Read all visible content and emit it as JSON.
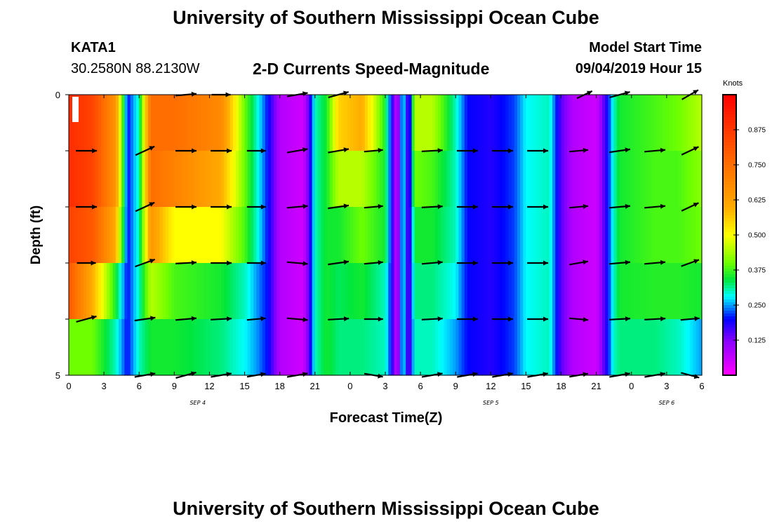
{
  "header": {
    "title": "University of Southern Mississippi Ocean Cube",
    "station_id": "KATA1",
    "coords": "30.2580N 88.2130W",
    "subtitle": "2-D Currents Speed-Magnitude",
    "model_label": "Model Start Time",
    "model_time": "09/04/2019 Hour 15"
  },
  "footer": {
    "title": "University of Southern Mississippi Ocean Cube"
  },
  "chart_data": {
    "type": "heatmap",
    "title": "2-D Currents Speed-Magnitude",
    "xlabel": "Forecast Time(Z)",
    "ylabel": "Depth (ft)",
    "x_range_hours": [
      0,
      54
    ],
    "x_tick_labels": [
      "0",
      "3",
      "6",
      "9",
      "12",
      "15",
      "18",
      "21",
      "0",
      "3",
      "6",
      "9",
      "12",
      "15",
      "18",
      "21",
      "0",
      "3",
      "6"
    ],
    "date_labels": [
      {
        "label": "SEP 4",
        "hour": 11
      },
      {
        "label": "SEP 5",
        "hour": 36
      },
      {
        "label": "SEP 6",
        "hour": 51
      }
    ],
    "y_range": [
      0,
      5
    ],
    "y_tick_labels": [
      "0",
      "5"
    ],
    "depth_levels": 5,
    "colorbar": {
      "title": "Knots",
      "tick_labels": [
        "0.875",
        "0.750",
        "0.625",
        "0.500",
        "0.375",
        "0.250",
        "0.125"
      ],
      "range": [
        0,
        1
      ]
    },
    "speed_keys": [
      {
        "t": 0,
        "rows": [
          0.9,
          0.9,
          0.85,
          0.8,
          0.4
        ]
      },
      {
        "t": 2,
        "rows": [
          0.85,
          0.85,
          0.8,
          0.6,
          0.4
        ]
      },
      {
        "t": 4,
        "rows": [
          0.65,
          0.65,
          0.6,
          0.35,
          0.3
        ]
      },
      {
        "t": 5,
        "rows": [
          0.2,
          0.2,
          0.2,
          0.2,
          0.2
        ]
      },
      {
        "t": 6,
        "rows": [
          0.3,
          0.3,
          0.3,
          0.3,
          0.3
        ]
      },
      {
        "t": 7,
        "rows": [
          0.75,
          0.75,
          0.65,
          0.45,
          0.35
        ]
      },
      {
        "t": 9,
        "rows": [
          0.75,
          0.7,
          0.5,
          0.38,
          0.35
        ]
      },
      {
        "t": 13,
        "rows": [
          0.68,
          0.6,
          0.5,
          0.35,
          0.32
        ]
      },
      {
        "t": 15,
        "rows": [
          0.4,
          0.4,
          0.38,
          0.3,
          0.28
        ]
      },
      {
        "t": 16,
        "rows": [
          0.3,
          0.3,
          0.3,
          0.25,
          0.25
        ]
      },
      {
        "t": 17,
        "rows": [
          0.2,
          0.2,
          0.2,
          0.2,
          0.2
        ]
      },
      {
        "t": 18,
        "rows": [
          0.08,
          0.08,
          0.08,
          0.08,
          0.08
        ]
      },
      {
        "t": 20,
        "rows": [
          0.05,
          0.05,
          0.05,
          0.05,
          0.05
        ]
      },
      {
        "t": 20.5,
        "rows": [
          0.15,
          0.15,
          0.15,
          0.15,
          0.15
        ]
      },
      {
        "t": 21,
        "rows": [
          0.3,
          0.3,
          0.3,
          0.3,
          0.3
        ]
      },
      {
        "t": 22,
        "rows": [
          0.35,
          0.35,
          0.35,
          0.35,
          0.35
        ]
      },
      {
        "t": 23,
        "rows": [
          0.55,
          0.45,
          0.35,
          0.33,
          0.32
        ]
      },
      {
        "t": 25,
        "rows": [
          0.6,
          0.45,
          0.4,
          0.35,
          0.32
        ]
      },
      {
        "t": 27,
        "rows": [
          0.35,
          0.35,
          0.35,
          0.3,
          0.3
        ]
      },
      {
        "t": 27.5,
        "rows": [
          0.2,
          0.2,
          0.2,
          0.2,
          0.2
        ]
      },
      {
        "t": 28,
        "rows": [
          0.05,
          0.05,
          0.05,
          0.05,
          0.05
        ]
      },
      {
        "t": 28.5,
        "rows": [
          0.3,
          0.3,
          0.3,
          0.3,
          0.3
        ]
      },
      {
        "t": 29,
        "rows": [
          0.12,
          0.12,
          0.12,
          0.12,
          0.12
        ]
      },
      {
        "t": 29.5,
        "rows": [
          0.45,
          0.4,
          0.35,
          0.32,
          0.3
        ]
      },
      {
        "t": 31,
        "rows": [
          0.45,
          0.38,
          0.35,
          0.32,
          0.3
        ]
      },
      {
        "t": 33,
        "rows": [
          0.3,
          0.3,
          0.3,
          0.28,
          0.25
        ]
      },
      {
        "t": 34,
        "rows": [
          0.2,
          0.2,
          0.2,
          0.2,
          0.2
        ]
      },
      {
        "t": 36,
        "rows": [
          0.18,
          0.18,
          0.18,
          0.18,
          0.18
        ]
      },
      {
        "t": 38,
        "rows": [
          0.22,
          0.22,
          0.22,
          0.22,
          0.22
        ]
      },
      {
        "t": 39,
        "rows": [
          0.28,
          0.28,
          0.28,
          0.28,
          0.28
        ]
      },
      {
        "t": 41,
        "rows": [
          0.3,
          0.3,
          0.3,
          0.3,
          0.3
        ]
      },
      {
        "t": 42,
        "rows": [
          0.15,
          0.15,
          0.15,
          0.15,
          0.15
        ]
      },
      {
        "t": 43,
        "rows": [
          0.08,
          0.08,
          0.08,
          0.08,
          0.08
        ]
      },
      {
        "t": 45,
        "rows": [
          0.05,
          0.05,
          0.05,
          0.05,
          0.05
        ]
      },
      {
        "t": 46,
        "rows": [
          0.2,
          0.2,
          0.2,
          0.2,
          0.2
        ]
      },
      {
        "t": 46.5,
        "rows": [
          0.3,
          0.3,
          0.3,
          0.3,
          0.3
        ]
      },
      {
        "t": 47,
        "rows": [
          0.35,
          0.35,
          0.35,
          0.35,
          0.32
        ]
      },
      {
        "t": 50,
        "rows": [
          0.38,
          0.38,
          0.38,
          0.36,
          0.32
        ]
      },
      {
        "t": 52,
        "rows": [
          0.4,
          0.38,
          0.38,
          0.36,
          0.3
        ]
      },
      {
        "t": 54,
        "rows": [
          0.45,
          0.42,
          0.4,
          0.35,
          0.25
        ]
      }
    ],
    "vector_rows": [
      {
        "depth": 0,
        "arrows": [
          {
            "t": 10,
            "angle": -5,
            "len": 1.0
          },
          {
            "t": 13,
            "angle": 0,
            "len": 0.9
          },
          {
            "t": 19.5,
            "angle": -10,
            "len": 1.0
          },
          {
            "t": 23,
            "angle": -15,
            "len": 1.0
          },
          {
            "t": 44,
            "angle": -25,
            "len": 0.8
          },
          {
            "t": 47,
            "angle": -15,
            "len": 1.0
          },
          {
            "t": 53,
            "angle": -30,
            "len": 0.9
          }
        ]
      },
      {
        "depth": 1,
        "arrows": [
          {
            "t": 1.5,
            "angle": 0,
            "len": 1.0
          },
          {
            "t": 6.5,
            "angle": -25,
            "len": 1.0
          },
          {
            "t": 10,
            "angle": 0,
            "len": 1.0
          },
          {
            "t": 13,
            "angle": 0,
            "len": 1.0
          },
          {
            "t": 16,
            "angle": 0,
            "len": 0.9
          },
          {
            "t": 19.5,
            "angle": -10,
            "len": 1.0
          },
          {
            "t": 23,
            "angle": -10,
            "len": 1.0
          },
          {
            "t": 26,
            "angle": -5,
            "len": 0.9
          },
          {
            "t": 31,
            "angle": -3,
            "len": 1.0
          },
          {
            "t": 34,
            "angle": 0,
            "len": 1.0
          },
          {
            "t": 37,
            "angle": 0,
            "len": 1.0
          },
          {
            "t": 40,
            "angle": 0,
            "len": 1.0
          },
          {
            "t": 43.5,
            "angle": -5,
            "len": 0.9
          },
          {
            "t": 47,
            "angle": -8,
            "len": 1.0
          },
          {
            "t": 50,
            "angle": -5,
            "len": 1.0
          },
          {
            "t": 53,
            "angle": -25,
            "len": 0.9
          }
        ]
      },
      {
        "depth": 2,
        "arrows": [
          {
            "t": 1.5,
            "angle": 0,
            "len": 1.0
          },
          {
            "t": 6.5,
            "angle": -25,
            "len": 1.0
          },
          {
            "t": 10,
            "angle": 0,
            "len": 1.0
          },
          {
            "t": 13,
            "angle": 0,
            "len": 1.0
          },
          {
            "t": 16,
            "angle": 0,
            "len": 0.9
          },
          {
            "t": 19.5,
            "angle": -5,
            "len": 1.0
          },
          {
            "t": 23,
            "angle": -8,
            "len": 1.0
          },
          {
            "t": 26,
            "angle": -5,
            "len": 0.9
          },
          {
            "t": 31,
            "angle": -3,
            "len": 1.0
          },
          {
            "t": 34,
            "angle": 0,
            "len": 1.0
          },
          {
            "t": 37,
            "angle": 0,
            "len": 1.0
          },
          {
            "t": 40,
            "angle": 0,
            "len": 1.0
          },
          {
            "t": 43.5,
            "angle": -5,
            "len": 0.9
          },
          {
            "t": 47,
            "angle": -5,
            "len": 1.0
          },
          {
            "t": 50,
            "angle": -5,
            "len": 1.0
          },
          {
            "t": 53,
            "angle": -25,
            "len": 0.9
          }
        ]
      },
      {
        "depth": 3,
        "arrows": [
          {
            "t": 1.5,
            "angle": 0,
            "len": 0.9
          },
          {
            "t": 6.5,
            "angle": -20,
            "len": 1.0
          },
          {
            "t": 10,
            "angle": -3,
            "len": 1.0
          },
          {
            "t": 13,
            "angle": 0,
            "len": 1.0
          },
          {
            "t": 16,
            "angle": 0,
            "len": 0.9
          },
          {
            "t": 19.5,
            "angle": 5,
            "len": 1.0
          },
          {
            "t": 23,
            "angle": -8,
            "len": 1.0
          },
          {
            "t": 26,
            "angle": -5,
            "len": 0.9
          },
          {
            "t": 31,
            "angle": -5,
            "len": 1.0
          },
          {
            "t": 34,
            "angle": 0,
            "len": 1.0
          },
          {
            "t": 37,
            "angle": 0,
            "len": 1.0
          },
          {
            "t": 40,
            "angle": 0,
            "len": 1.0
          },
          {
            "t": 43.5,
            "angle": -10,
            "len": 0.9
          },
          {
            "t": 47,
            "angle": -5,
            "len": 1.0
          },
          {
            "t": 50,
            "angle": -5,
            "len": 1.0
          },
          {
            "t": 53,
            "angle": -20,
            "len": 0.9
          }
        ]
      },
      {
        "depth": 4,
        "arrows": [
          {
            "t": 1.5,
            "angle": -15,
            "len": 1.0
          },
          {
            "t": 6.5,
            "angle": -8,
            "len": 1.0
          },
          {
            "t": 10,
            "angle": -5,
            "len": 1.0
          },
          {
            "t": 13,
            "angle": -3,
            "len": 1.0
          },
          {
            "t": 16,
            "angle": -5,
            "len": 0.9
          },
          {
            "t": 19.5,
            "angle": 5,
            "len": 1.0
          },
          {
            "t": 23,
            "angle": -3,
            "len": 1.0
          },
          {
            "t": 26,
            "angle": 0,
            "len": 0.9
          },
          {
            "t": 31,
            "angle": -3,
            "len": 1.0
          },
          {
            "t": 34,
            "angle": 0,
            "len": 1.0
          },
          {
            "t": 37,
            "angle": 0,
            "len": 1.0
          },
          {
            "t": 40,
            "angle": 0,
            "len": 1.0
          },
          {
            "t": 43.5,
            "angle": 5,
            "len": 0.9
          },
          {
            "t": 47,
            "angle": -3,
            "len": 1.0
          },
          {
            "t": 50,
            "angle": -3,
            "len": 1.0
          },
          {
            "t": 53,
            "angle": -5,
            "len": 0.9
          }
        ]
      },
      {
        "depth": 5,
        "arrows": [
          {
            "t": 6.5,
            "angle": -10,
            "len": 1.0
          },
          {
            "t": 10,
            "angle": -15,
            "len": 1.0
          },
          {
            "t": 13,
            "angle": -10,
            "len": 1.0
          },
          {
            "t": 16,
            "angle": -10,
            "len": 0.9
          },
          {
            "t": 19.5,
            "angle": -10,
            "len": 1.0
          },
          {
            "t": 26,
            "angle": 10,
            "len": 0.9
          },
          {
            "t": 31,
            "angle": -10,
            "len": 1.0
          },
          {
            "t": 34,
            "angle": -10,
            "len": 1.0
          },
          {
            "t": 37,
            "angle": -10,
            "len": 1.0
          },
          {
            "t": 40,
            "angle": -10,
            "len": 1.0
          },
          {
            "t": 43.5,
            "angle": -10,
            "len": 0.9
          },
          {
            "t": 47,
            "angle": -10,
            "len": 1.0
          },
          {
            "t": 50,
            "angle": -10,
            "len": 1.0
          },
          {
            "t": 53,
            "angle": 15,
            "len": 0.9
          }
        ]
      }
    ]
  }
}
